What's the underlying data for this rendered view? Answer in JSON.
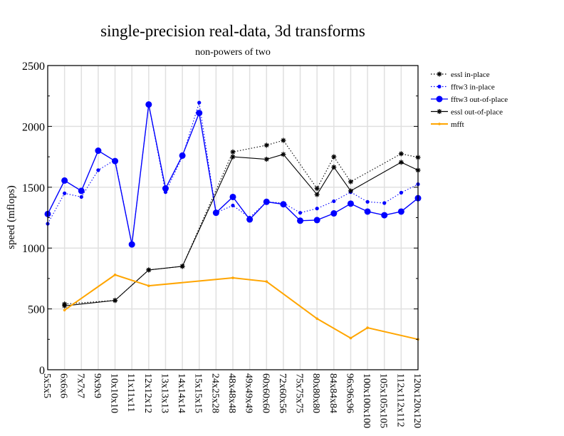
{
  "chart_data": {
    "type": "line",
    "title": "single-precision real-data, 3d transforms",
    "subtitle": "non-powers of two",
    "xlabel": "",
    "ylabel": "speed (mflops)",
    "ylim": [
      0,
      2500
    ],
    "yticks": [
      0,
      500,
      1000,
      1500,
      2000,
      2500
    ],
    "grid": true,
    "legend_position": "right",
    "categories": [
      "5x5x5",
      "6x6x6",
      "7x7x7",
      "9x9x9",
      "10x10x10",
      "11x11x11",
      "12x12x12",
      "13x13x13",
      "14x14x14",
      "15x15x15",
      "24x25x28",
      "48x48x48",
      "49x49x49",
      "60x60x60",
      "72x60x56",
      "75x75x75",
      "80x80x80",
      "84x84x84",
      "96x96x96",
      "100x100x100",
      "105x105x105",
      "112x112x112",
      "120x120x120"
    ],
    "series": [
      {
        "name": "essl in-place",
        "color": "#000000",
        "dash": "dotted",
        "marker": "star",
        "values": [
          null,
          540,
          null,
          null,
          570,
          null,
          820,
          null,
          850,
          null,
          null,
          1790,
          null,
          1845,
          1885,
          null,
          1490,
          1750,
          1545,
          null,
          null,
          1775,
          1745
        ]
      },
      {
        "name": "fftw3 in-place",
        "color": "#0000ff",
        "dash": "dotted",
        "marker": "small-dot",
        "values": [
          1200,
          1450,
          1420,
          1640,
          1725,
          1030,
          2180,
          1460,
          1750,
          2195,
          1290,
          1350,
          1250,
          1380,
          1370,
          1290,
          1325,
          1385,
          1460,
          1380,
          1370,
          1455,
          1525
        ]
      },
      {
        "name": "fftw3 out-of-place",
        "color": "#0000ff",
        "dash": "solid",
        "marker": "big-dot",
        "values": [
          1280,
          1555,
          1470,
          1800,
          1715,
          1030,
          2180,
          1490,
          1760,
          2110,
          1290,
          1420,
          1235,
          1380,
          1360,
          1225,
          1230,
          1285,
          1365,
          1300,
          1270,
          1300,
          1410
        ]
      },
      {
        "name": "essl out-of-place",
        "color": "#000000",
        "dash": "solid",
        "marker": "star",
        "values": [
          null,
          525,
          null,
          null,
          570,
          null,
          820,
          null,
          850,
          null,
          null,
          1750,
          null,
          1730,
          1770,
          null,
          1440,
          1665,
          1470,
          null,
          null,
          1705,
          1640
        ]
      },
      {
        "name": "mfft",
        "color": "#ffa500",
        "dash": "solid",
        "marker": "tiny-dot",
        "values": [
          null,
          490,
          null,
          null,
          780,
          null,
          690,
          null,
          null,
          null,
          null,
          755,
          null,
          725,
          null,
          null,
          420,
          null,
          260,
          345,
          null,
          null,
          250
        ]
      }
    ]
  }
}
